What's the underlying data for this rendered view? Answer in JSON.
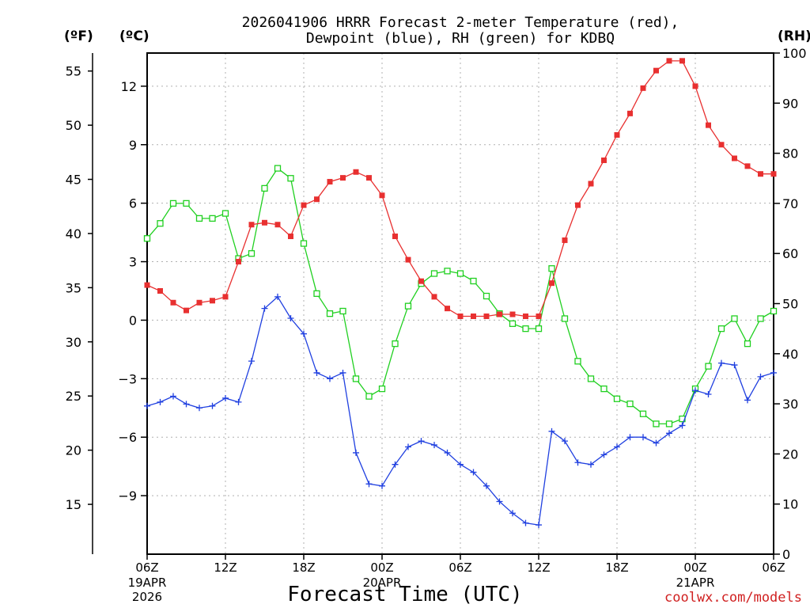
{
  "chart_data": {
    "type": "line",
    "title": [
      "2026041906 HRRR Forecast 2-meter Temperature (red),",
      "Dewpoint (blue), RH (green) for KDBQ"
    ],
    "units": {
      "fahrenheit": "(ºF)",
      "celsius": "(ºC)",
      "rh": "(RH)"
    },
    "xlabel": "Forecast Time (UTC)",
    "credit": "coolwx.com/models",
    "hours": [
      0,
      1,
      2,
      3,
      4,
      5,
      6,
      7,
      8,
      9,
      10,
      11,
      12,
      13,
      14,
      15,
      16,
      17,
      18,
      19,
      20,
      21,
      22,
      23,
      24,
      25,
      26,
      27,
      28,
      29,
      30,
      31,
      32,
      33,
      34,
      35,
      36,
      37,
      38,
      39,
      40,
      41,
      42,
      43,
      44,
      45,
      46,
      47,
      48
    ],
    "x_ticks": [
      {
        "hour": 0,
        "label": "06Z",
        "sub": [
          "19APR",
          "2026"
        ]
      },
      {
        "hour": 6,
        "label": "12Z",
        "sub": []
      },
      {
        "hour": 12,
        "label": "18Z",
        "sub": []
      },
      {
        "hour": 18,
        "label": "00Z",
        "sub": [
          "20APR"
        ]
      },
      {
        "hour": 24,
        "label": "06Z",
        "sub": []
      },
      {
        "hour": 30,
        "label": "12Z",
        "sub": []
      },
      {
        "hour": 36,
        "label": "18Z",
        "sub": []
      },
      {
        "hour": 42,
        "label": "00Z",
        "sub": [
          "21APR"
        ]
      },
      {
        "hour": 48,
        "label": "06Z",
        "sub": []
      }
    ],
    "celsius_axis": {
      "range": [
        -12.0,
        13.7
      ],
      "ticks": [
        "12",
        "9",
        "6",
        "3",
        "0",
        "−3",
        "−6",
        "−9"
      ],
      "tick_values": [
        12,
        9,
        6,
        3,
        0,
        -3,
        -6,
        -9
      ]
    },
    "fahrenheit_axis": {
      "ticks": [
        "55",
        "50",
        "45",
        "40",
        "35",
        "30",
        "25",
        "20",
        "15"
      ],
      "tick_values": [
        55,
        50,
        45,
        40,
        35,
        30,
        25,
        20,
        15
      ]
    },
    "rh_axis": {
      "range": [
        0,
        100
      ],
      "ticks": [
        "100",
        "90",
        "80",
        "70",
        "60",
        "50",
        "40",
        "30",
        "20",
        "10",
        "0"
      ],
      "tick_values": [
        100,
        90,
        80,
        70,
        60,
        50,
        40,
        30,
        20,
        10,
        0
      ]
    },
    "series": [
      {
        "name": "2-meter Temperature",
        "color": "#e83030",
        "axis": "celsius",
        "marker": "filled-square",
        "values": [
          1.8,
          1.5,
          0.9,
          0.5,
          0.9,
          1.0,
          1.2,
          3.0,
          4.9,
          5.0,
          4.9,
          4.3,
          5.9,
          6.2,
          7.1,
          7.3,
          7.6,
          7.3,
          6.4,
          4.3,
          3.1,
          2.0,
          1.2,
          0.6,
          0.2,
          0.2,
          0.2,
          0.3,
          0.3,
          0.2,
          0.2,
          1.9,
          4.1,
          5.9,
          7.0,
          8.2,
          9.5,
          10.6,
          11.9,
          12.8,
          13.3,
          13.3,
          12.0,
          10.0,
          9.0,
          8.3,
          7.9,
          7.5,
          7.5
        ]
      },
      {
        "name": "Dewpoint",
        "color": "#2040e0",
        "axis": "celsius",
        "marker": "plus",
        "values": [
          -4.4,
          -4.2,
          -3.9,
          -4.3,
          -4.5,
          -4.4,
          -4.0,
          -4.2,
          -2.1,
          0.6,
          1.2,
          0.1,
          -0.7,
          -2.7,
          -3.0,
          -2.7,
          -6.8,
          -8.4,
          -8.5,
          -7.4,
          -6.5,
          -6.2,
          -6.4,
          -6.8,
          -7.4,
          -7.8,
          -8.5,
          -9.3,
          -9.9,
          -10.4,
          -10.5,
          -5.7,
          -6.2,
          -7.3,
          -7.4,
          -6.9,
          -6.5,
          -6.0,
          -6.0,
          -6.3,
          -5.8,
          -5.4,
          -3.6,
          -3.8,
          -2.2,
          -2.3,
          -4.1,
          -2.9,
          -2.7
        ]
      },
      {
        "name": "RH",
        "color": "#20d020",
        "axis": "rh",
        "marker": "open-square",
        "values": [
          63,
          66,
          70,
          70,
          67,
          67,
          68,
          59,
          60,
          73,
          77,
          75,
          62,
          52,
          48,
          48.5,
          35,
          31.5,
          33,
          42,
          49.5,
          54,
          56,
          56.5,
          56,
          54.5,
          51.5,
          48,
          46,
          45,
          45,
          57,
          47,
          38.5,
          35,
          33,
          31,
          30,
          28,
          26,
          26,
          27,
          33,
          37.5,
          45,
          47,
          42,
          47,
          48.5
        ]
      }
    ]
  }
}
